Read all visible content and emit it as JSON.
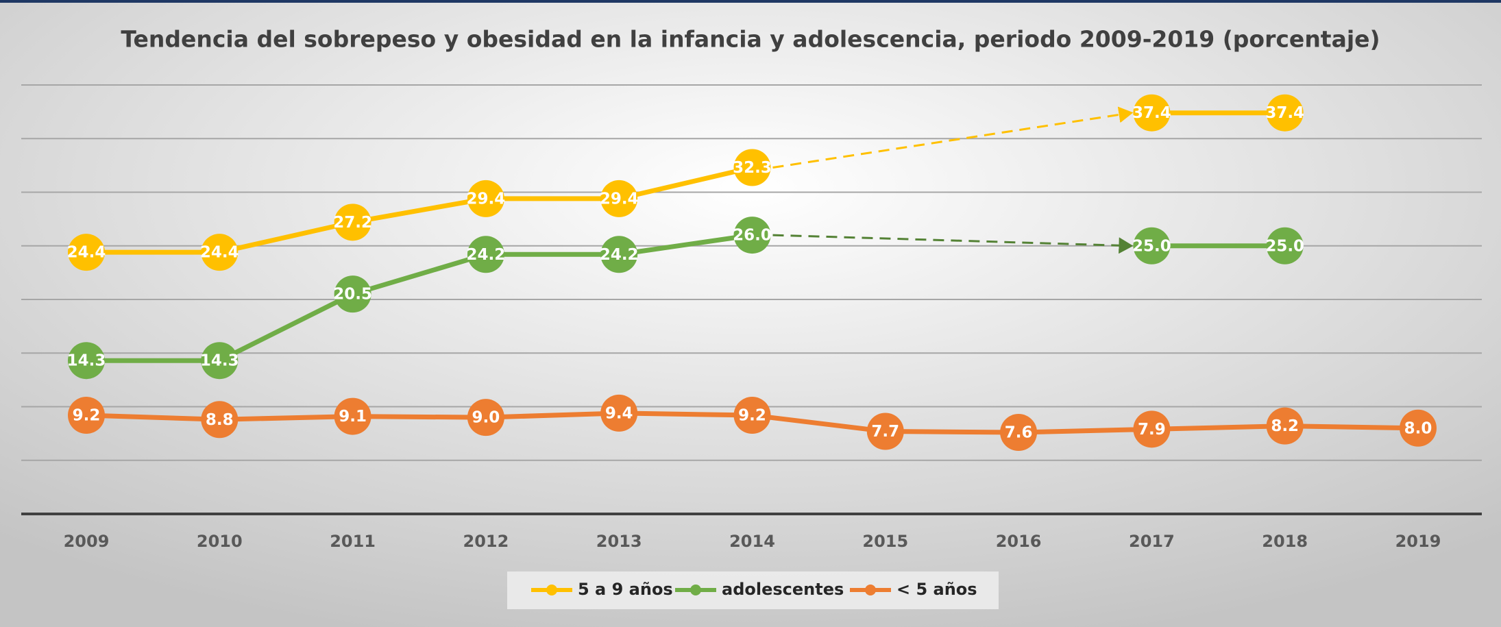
{
  "chart_data": {
    "type": "line",
    "title": "Tendencia del sobrepeso y obesidad en la infancia y adolescencia,  periodo 2009-2019 (porcentaje)",
    "categories": [
      "2009",
      "2010",
      "2011",
      "2012",
      "2013",
      "2014",
      "2015",
      "2016",
      "2017",
      "2018",
      "2019"
    ],
    "series": [
      {
        "name": "5 a 9 años",
        "color": "#ffc000",
        "values": [
          24.4,
          24.4,
          27.2,
          29.4,
          29.4,
          32.3,
          null,
          null,
          37.4,
          37.4,
          null
        ],
        "value_labels": [
          "24.4",
          "24.4",
          "27.2",
          "29.4",
          "29.4",
          "32.3",
          null,
          null,
          "37.4",
          "37.4",
          null
        ]
      },
      {
        "name": "adolescentes",
        "color": "#70ad47",
        "values": [
          14.3,
          14.3,
          20.5,
          24.2,
          24.2,
          26.0,
          null,
          null,
          25.0,
          25.0,
          null
        ],
        "value_labels": [
          "14.3",
          "14.3",
          "20.5",
          "24.2",
          "24.2",
          "26.0",
          null,
          null,
          "25.0",
          "25.0",
          null
        ]
      },
      {
        "name": "< 5 años",
        "color": "#ed7d31",
        "values": [
          9.2,
          8.8,
          9.1,
          9.0,
          9.4,
          9.2,
          7.7,
          7.6,
          7.9,
          8.2,
          8.0
        ],
        "value_labels": [
          "9.2",
          "8.8",
          "9.1",
          "9.0",
          "9.4",
          "9.2",
          "7.7",
          "7.6",
          "7.9",
          "8.2",
          "8.0"
        ]
      }
    ],
    "ylim": [
      0,
      40
    ],
    "yticks": [
      0,
      5,
      10,
      15,
      20,
      25,
      30,
      35,
      40
    ],
    "ytick_labels": false,
    "grid": true,
    "legend": "bottom"
  }
}
